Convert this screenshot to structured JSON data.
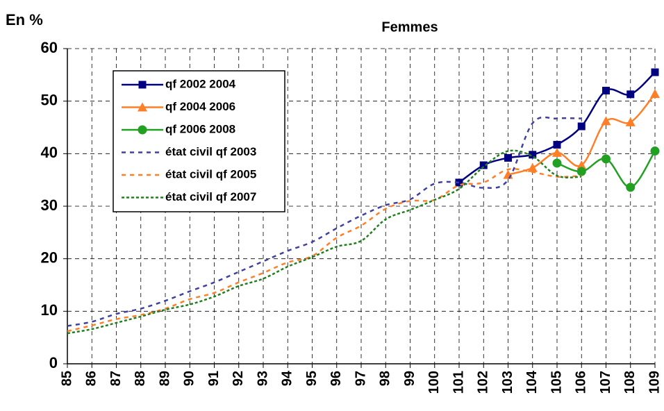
{
  "chart_data": {
    "type": "line",
    "title": "Femmes",
    "y_label": "En %",
    "categories": [
      "85",
      "86",
      "87",
      "88",
      "89",
      "90",
      "91",
      "92",
      "93",
      "94",
      "95",
      "96",
      "97",
      "98",
      "99",
      "100",
      "101",
      "102",
      "103",
      "104",
      "105",
      "106",
      "107",
      "108",
      "109"
    ],
    "ylim": [
      0,
      60
    ],
    "yticks": [
      0,
      10,
      20,
      30,
      40,
      50,
      60
    ],
    "grid": true,
    "legend": "upper left",
    "series": [
      {
        "name": "qf 2002 2004",
        "color": "#000080",
        "line_style": "solid",
        "marker": "square",
        "values": [
          null,
          null,
          null,
          null,
          null,
          null,
          null,
          null,
          null,
          null,
          null,
          null,
          null,
          null,
          null,
          null,
          34.5,
          37.8,
          39.2,
          39.8,
          41.7,
          45.2,
          52,
          51.3,
          55.5
        ]
      },
      {
        "name": "qf 2004 2006",
        "color": "#ff7f27",
        "line_style": "solid",
        "marker": "triangle",
        "values": [
          null,
          null,
          null,
          null,
          null,
          null,
          null,
          null,
          null,
          null,
          null,
          null,
          null,
          null,
          null,
          null,
          null,
          null,
          36,
          37.3,
          40.2,
          37.8,
          46.2,
          46,
          51.4
        ]
      },
      {
        "name": "qf 2006 2008",
        "color": "#22a022",
        "line_style": "solid",
        "marker": "circle",
        "values": [
          null,
          null,
          null,
          null,
          null,
          null,
          null,
          null,
          null,
          null,
          null,
          null,
          null,
          null,
          null,
          null,
          null,
          null,
          null,
          null,
          38.2,
          36.6,
          39,
          33.6,
          40.5
        ]
      },
      {
        "name": "état civil qf 2003",
        "color": "#4040a0",
        "line_style": "dashed",
        "marker": "none",
        "values": [
          7.2,
          8,
          9.5,
          10.5,
          12,
          13.8,
          15.5,
          17.5,
          19.5,
          21.5,
          23.2,
          25.8,
          28.2,
          30.2,
          31.3,
          34.3,
          34.5,
          33.5,
          35,
          45.8,
          46.7,
          46.7,
          null,
          null,
          null
        ]
      },
      {
        "name": "état civil qf 2005",
        "color": "#ff7f27",
        "line_style": "dashed",
        "marker": "none",
        "values": [
          6.2,
          7.3,
          8.5,
          9.3,
          10.5,
          12.3,
          13.5,
          15.5,
          17.3,
          19.3,
          20.5,
          24,
          26.3,
          29.5,
          31,
          31.2,
          34,
          34.5,
          37,
          36.5,
          35.6,
          35.8,
          null,
          null,
          null
        ]
      },
      {
        "name": "état civil qf 2007",
        "color": "#208020",
        "line_style": "dotted",
        "marker": "none",
        "values": [
          5.8,
          6.6,
          7.8,
          9,
          10.3,
          11.3,
          12.8,
          14.8,
          16.2,
          18.5,
          20.3,
          22.3,
          23.4,
          27.5,
          29.3,
          31.2,
          33.3,
          37.5,
          40.5,
          39.5,
          35.8,
          35.6,
          null,
          null,
          null
        ]
      }
    ]
  }
}
